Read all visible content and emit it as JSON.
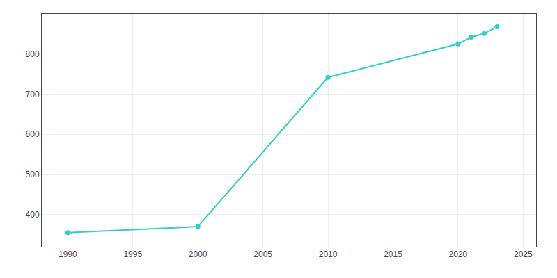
{
  "chart_data": {
    "type": "line",
    "x": [
      1990,
      2000,
      2010,
      2020,
      2021,
      2022,
      2023
    ],
    "values": [
      355,
      370,
      742,
      825,
      842,
      851,
      868
    ],
    "color": "#2ECECE",
    "marker": "circle",
    "xlim": [
      1988,
      2026
    ],
    "ylim": [
      320,
      900
    ],
    "xticks": [
      1990,
      1995,
      2000,
      2005,
      2010,
      2015,
      2020,
      2025
    ],
    "yticks": [
      400,
      500,
      600,
      700,
      800
    ],
    "grid": true
  }
}
